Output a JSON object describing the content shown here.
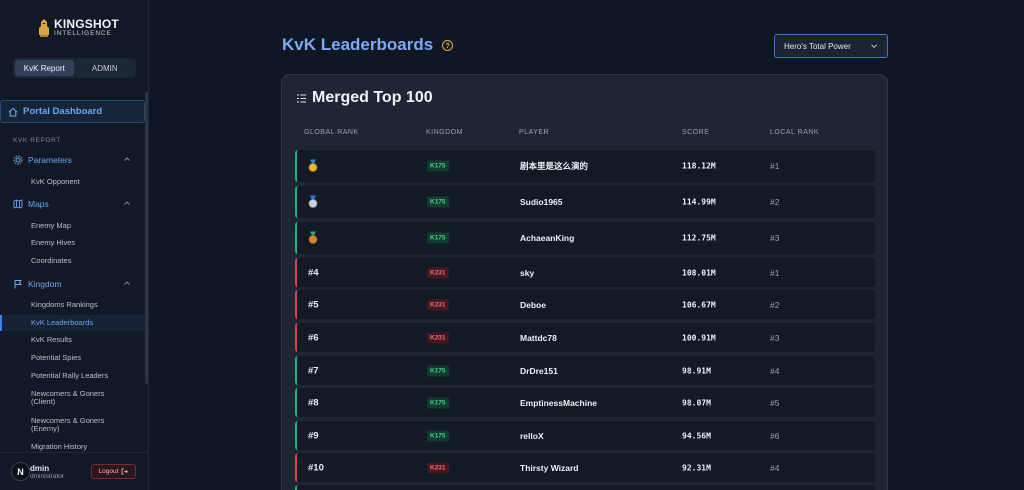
{
  "logo": {
    "title": "KINGSHOT",
    "subtitle": "INTELLIGENCE"
  },
  "segmented": {
    "left": "KvK Report",
    "right": "ADMIN"
  },
  "sidebar": {
    "top_item": "Portal Dashboard",
    "section_header": "KVK REPORT",
    "groups": [
      {
        "label": "Parameters",
        "icon": "gear-icon",
        "items": [
          "KvK Opponent"
        ]
      },
      {
        "label": "Maps",
        "icon": "map-icon",
        "items": [
          "Enemy Map",
          "Enemy Hives",
          "Coordinates"
        ]
      },
      {
        "label": "Kingdom",
        "icon": "flag-icon",
        "items": [
          "Kingdoms Rankings",
          "KvK Leaderboards",
          "KvK Results",
          "Potential Spies",
          "Potential Rally Leaders",
          "Newcomers & Goners (Client)",
          "Newcomers & Goners (Enemy)",
          "Migration History"
        ]
      }
    ],
    "active_item": "KvK Leaderboards"
  },
  "user": {
    "avatar_letter": "N",
    "name": "dmin",
    "role": "dministrator",
    "logout": "Logout"
  },
  "page": {
    "title": "KvK Leaderboards",
    "help_glyph": "?",
    "select_value": "Hero's Total Power"
  },
  "card": {
    "title": "Merged Top 100",
    "columns": [
      "GLOBAL RANK",
      "KINGDOM",
      "PLAYER",
      "SCORE",
      "LOCAL RANK"
    ],
    "rows": [
      {
        "rank": "",
        "medal": "gold",
        "kingdom": "K175",
        "kingdom_color": "#38d594",
        "player": "剧本里是这么演的",
        "score": "118.12M",
        "local_rank": "#1"
      },
      {
        "rank": "",
        "medal": "silver",
        "kingdom": "K175",
        "kingdom_color": "#38d594",
        "player": "Sudio1965",
        "score": "114.99M",
        "local_rank": "#2"
      },
      {
        "rank": "",
        "medal": "bronze",
        "kingdom": "K175",
        "kingdom_color": "#38d594",
        "player": "AchaeanKing",
        "score": "112.75M",
        "local_rank": "#3"
      },
      {
        "rank": "#4",
        "medal": "",
        "kingdom": "K231",
        "kingdom_color": "#f26a74",
        "player": "sky",
        "score": "108.01M",
        "local_rank": "#1"
      },
      {
        "rank": "#5",
        "medal": "",
        "kingdom": "K231",
        "kingdom_color": "#f26a74",
        "player": "Deboe",
        "score": "106.67M",
        "local_rank": "#2"
      },
      {
        "rank": "#6",
        "medal": "",
        "kingdom": "K231",
        "kingdom_color": "#f26a74",
        "player": "Mattdc78",
        "score": "100.91M",
        "local_rank": "#3"
      },
      {
        "rank": "#7",
        "medal": "",
        "kingdom": "K175",
        "kingdom_color": "#38d594",
        "player": "DrDre151",
        "score": "98.91M",
        "local_rank": "#4"
      },
      {
        "rank": "#8",
        "medal": "",
        "kingdom": "K175",
        "kingdom_color": "#38d594",
        "player": "EmptinessMachine",
        "score": "98.07M",
        "local_rank": "#5"
      },
      {
        "rank": "#9",
        "medal": "",
        "kingdom": "K175",
        "kingdom_color": "#38d594",
        "player": "relloX",
        "score": "94.56M",
        "local_rank": "#6"
      },
      {
        "rank": "#10",
        "medal": "",
        "kingdom": "K231",
        "kingdom_color": "#f26a74",
        "player": "Thirsty Wizard",
        "score": "92.31M",
        "local_rank": "#4"
      }
    ]
  }
}
